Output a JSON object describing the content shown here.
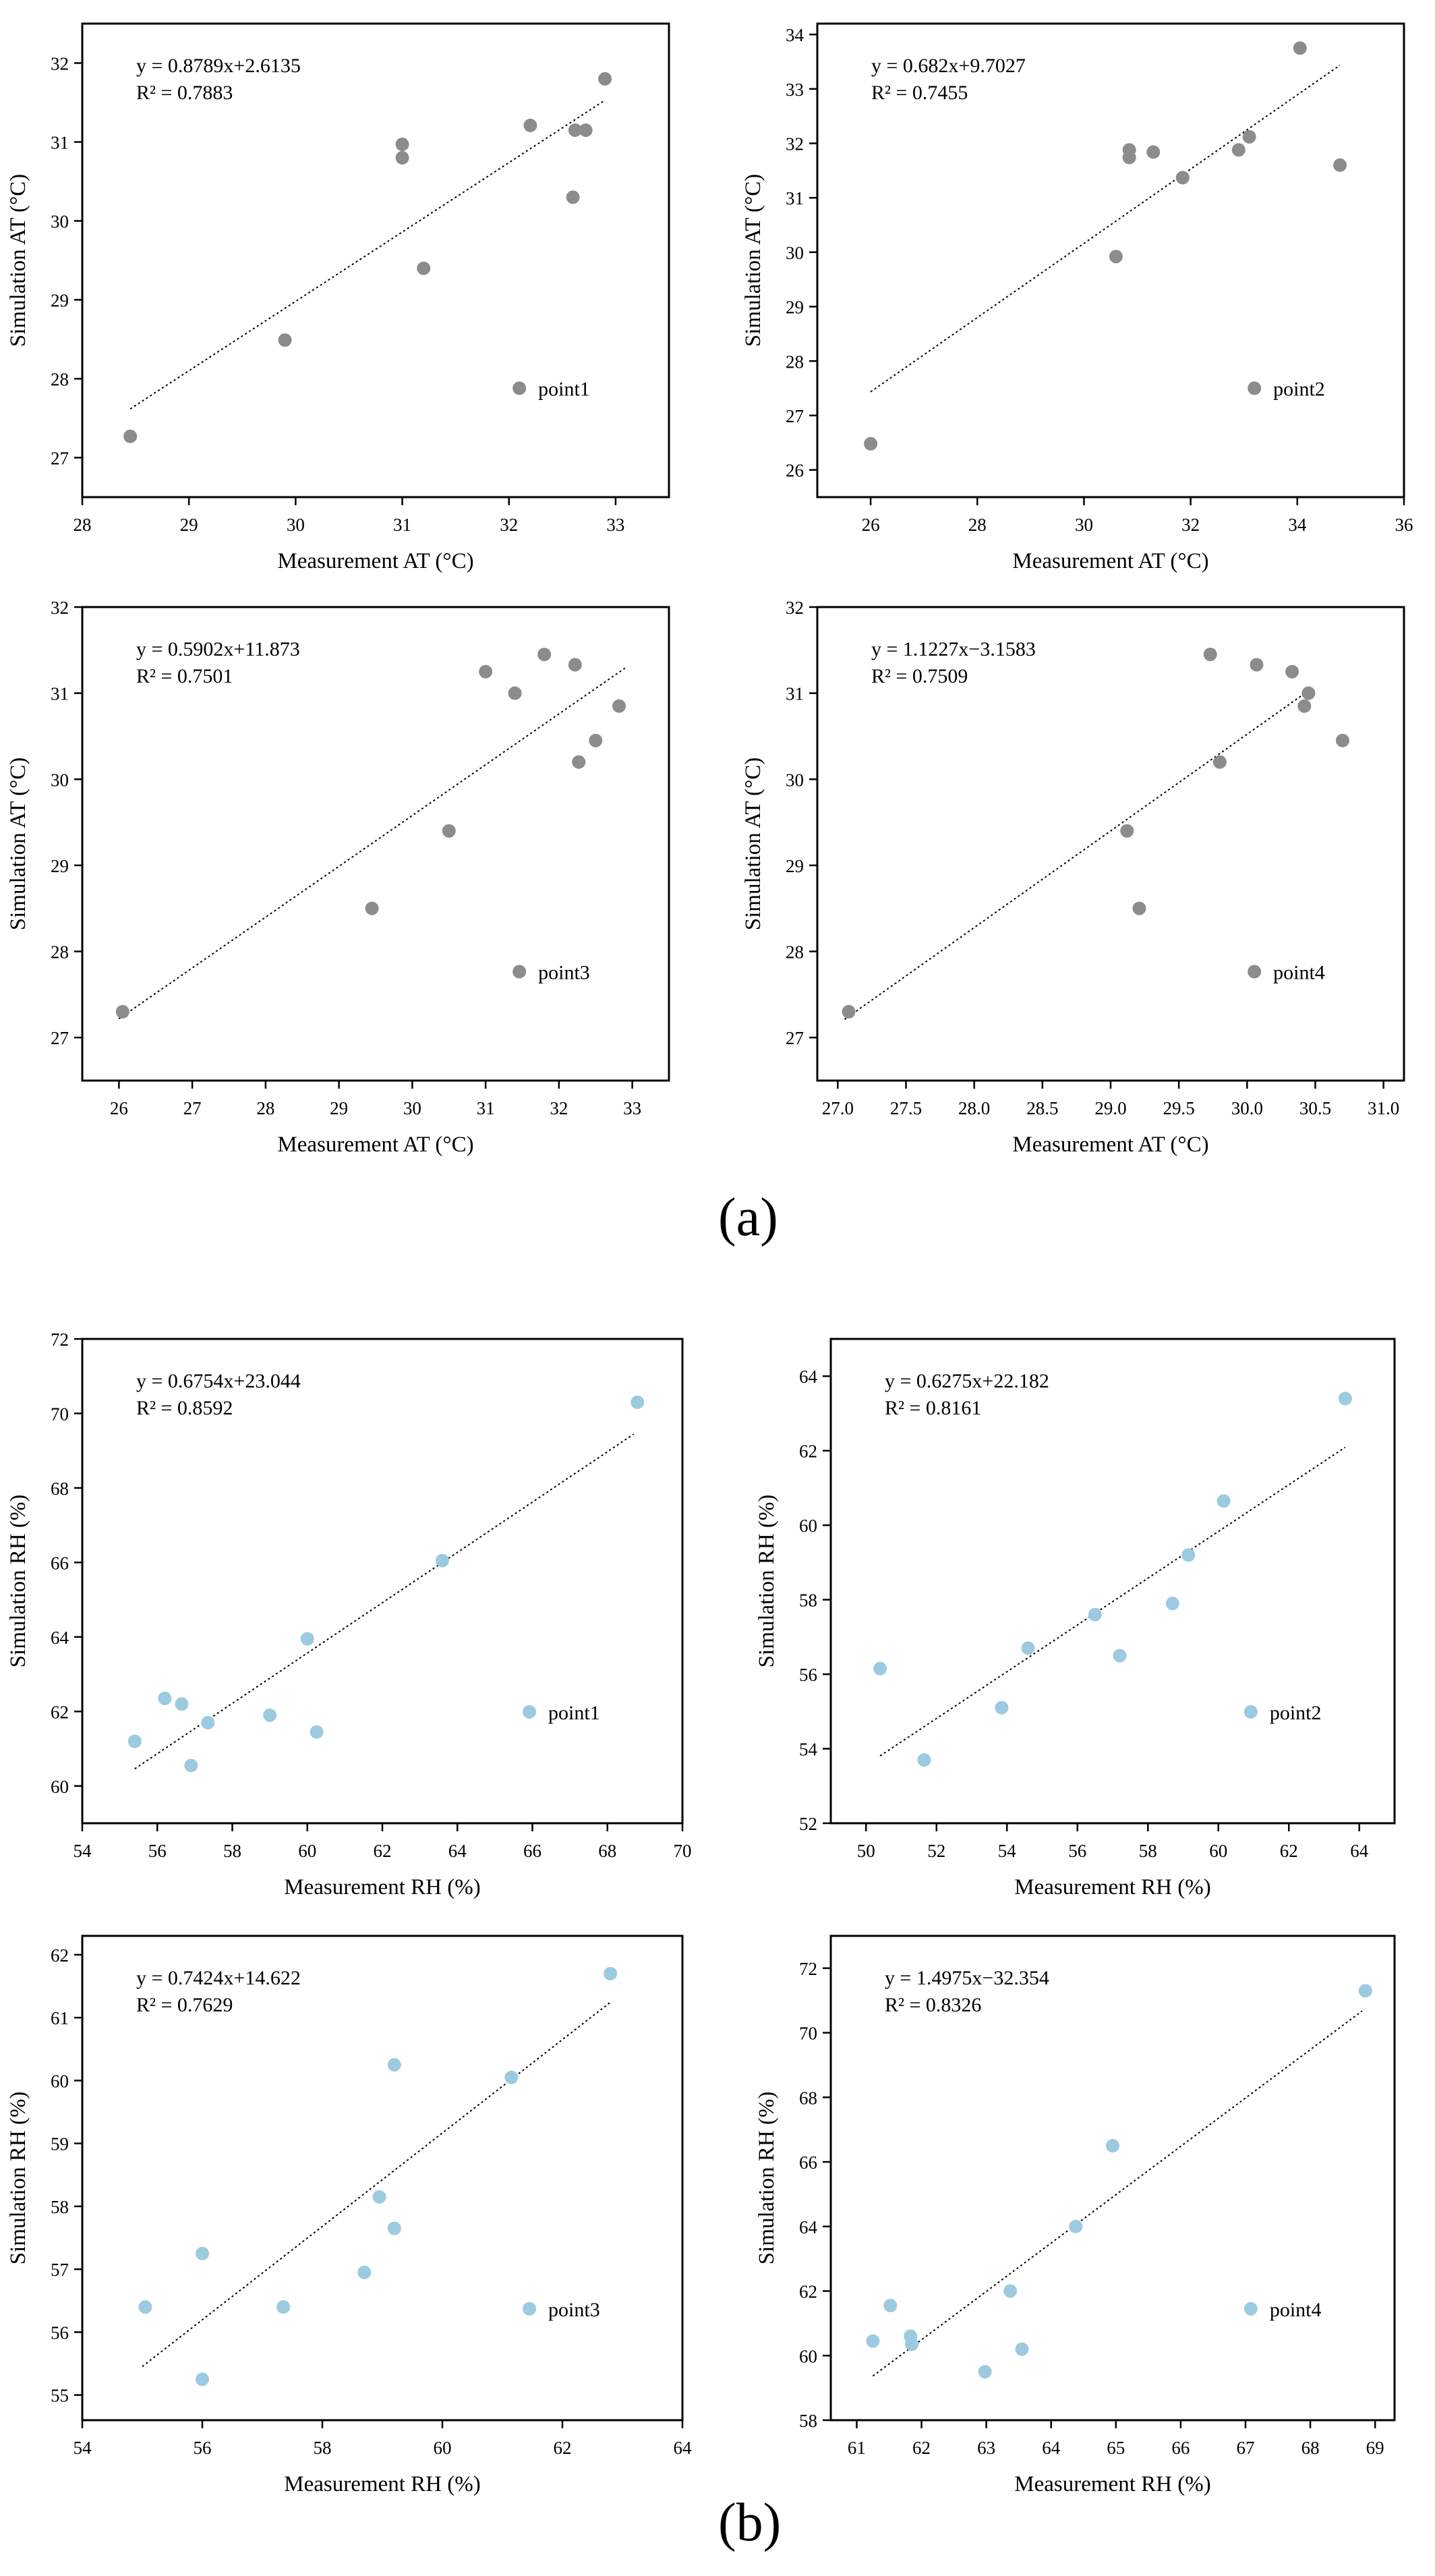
{
  "panel_labels": {
    "a": "(a)",
    "b": "(b)"
  },
  "colors": {
    "at_points": "#8c8c8c",
    "rh_points": "#9ccae0",
    "axis": "#000000",
    "fit_line": "#000000"
  },
  "chart_data": [
    {
      "id": "a1",
      "type": "scatter",
      "group": "a",
      "xlabel": "Measurement AT (°C)",
      "ylabel": "Simulation AT (°C)",
      "xlim": [
        28,
        33.5
      ],
      "ylim": [
        26.5,
        32.5
      ],
      "xticks": [
        28,
        29,
        30,
        31,
        32,
        33
      ],
      "yticks": [
        27,
        28,
        29,
        30,
        31,
        32
      ],
      "equation": "y = 0.8789x+2.6135",
      "r2": "R² = 0.7883",
      "fit": {
        "slope": 0.8789,
        "intercept": 2.6135,
        "x_range": [
          28.45,
          32.9
        ]
      },
      "legend": "point1",
      "legend_position": "lower-right",
      "points": [
        [
          28.45,
          27.27
        ],
        [
          29.9,
          28.49
        ],
        [
          31.0,
          30.97
        ],
        [
          31.0,
          30.8
        ],
        [
          31.2,
          29.4
        ],
        [
          32.2,
          31.21
        ],
        [
          32.6,
          30.3
        ],
        [
          32.62,
          31.15
        ],
        [
          32.72,
          31.15
        ],
        [
          32.9,
          31.8
        ]
      ]
    },
    {
      "id": "a2",
      "type": "scatter",
      "group": "a",
      "xlabel": "Measurement AT (°C)",
      "ylabel": "Simulation AT (°C)",
      "xlim": [
        25,
        36
      ],
      "ylim": [
        25.5,
        34.2
      ],
      "xticks": [
        26,
        28,
        30,
        32,
        34,
        36
      ],
      "yticks": [
        26,
        27,
        28,
        29,
        30,
        31,
        32,
        33,
        34
      ],
      "equation": "y = 0.682x+9.7027",
      "r2": "R² = 0.7455",
      "fit": {
        "slope": 0.682,
        "intercept": 9.7027,
        "x_range": [
          26.0,
          34.8
        ]
      },
      "legend": "point2",
      "legend_position": "lower-right",
      "points": [
        [
          26.0,
          26.48
        ],
        [
          30.6,
          29.92
        ],
        [
          30.85,
          31.88
        ],
        [
          30.85,
          31.74
        ],
        [
          31.3,
          31.84
        ],
        [
          31.85,
          31.37
        ],
        [
          32.9,
          31.88
        ],
        [
          33.1,
          32.12
        ],
        [
          34.05,
          33.75
        ],
        [
          34.8,
          31.6
        ]
      ]
    },
    {
      "id": "a3",
      "type": "scatter",
      "group": "a",
      "xlabel": "Measurement AT (°C)",
      "ylabel": "Simulation AT (°C)",
      "xlim": [
        25.5,
        33.5
      ],
      "ylim": [
        26.5,
        32
      ],
      "xticks": [
        26,
        27,
        28,
        29,
        30,
        31,
        32,
        33
      ],
      "yticks": [
        27,
        28,
        29,
        30,
        31,
        32
      ],
      "equation": "y = 0.5902x+11.873",
      "r2": "R² = 0.7501",
      "fit": {
        "slope": 0.5902,
        "intercept": 11.873,
        "x_range": [
          26.0,
          32.9
        ]
      },
      "legend": "point3",
      "legend_position": "lower-right",
      "points": [
        [
          26.05,
          27.3
        ],
        [
          29.45,
          28.5
        ],
        [
          30.5,
          29.4
        ],
        [
          31.0,
          31.25
        ],
        [
          31.4,
          31.0
        ],
        [
          31.8,
          31.45
        ],
        [
          32.22,
          31.33
        ],
        [
          32.27,
          30.2
        ],
        [
          32.5,
          30.45
        ],
        [
          32.82,
          30.85
        ]
      ]
    },
    {
      "id": "a4",
      "type": "scatter",
      "group": "a",
      "xlabel": "Measurement AT (°C)",
      "ylabel": "Simulation AT (°C)",
      "xlim": [
        26.85,
        31.15
      ],
      "ylim": [
        26.5,
        32
      ],
      "xticks": [
        27.0,
        27.5,
        28.0,
        28.5,
        29.0,
        29.5,
        30.0,
        30.5,
        31.0
      ],
      "yticks": [
        27,
        28,
        29,
        30,
        31,
        32
      ],
      "equation": "y = 1.1227x−3.1583",
      "r2": "R² = 0.7509",
      "fit": {
        "slope": 1.1227,
        "intercept": -3.1583,
        "x_range": [
          27.05,
          30.45
        ]
      },
      "legend": "point4",
      "legend_position": "lower-right",
      "points": [
        [
          27.08,
          27.3
        ],
        [
          29.12,
          29.4
        ],
        [
          29.21,
          28.5
        ],
        [
          29.73,
          31.45
        ],
        [
          29.8,
          30.2
        ],
        [
          30.07,
          31.33
        ],
        [
          30.33,
          31.25
        ],
        [
          30.42,
          30.85
        ],
        [
          30.45,
          31.0
        ],
        [
          30.7,
          30.45
        ]
      ]
    },
    {
      "id": "b1",
      "type": "scatter",
      "group": "b",
      "xlabel": "Measurement RH (%)",
      "ylabel": "Simulation RH (%)",
      "xlim": [
        54,
        70
      ],
      "ylim": [
        59,
        72
      ],
      "xticks": [
        54,
        56,
        58,
        60,
        62,
        64,
        66,
        68,
        70
      ],
      "yticks": [
        60,
        62,
        64,
        66,
        68,
        70,
        72
      ],
      "equation": "y = 0.6754x+23.044",
      "r2": "R² = 0.8592",
      "fit": {
        "slope": 0.6754,
        "intercept": 23.044,
        "x_range": [
          55.4,
          68.7
        ]
      },
      "legend": "point1",
      "legend_position": "lower-right",
      "points": [
        [
          55.4,
          61.2
        ],
        [
          56.2,
          62.35
        ],
        [
          56.65,
          62.2
        ],
        [
          56.9,
          60.55
        ],
        [
          57.35,
          61.7
        ],
        [
          59.0,
          61.9
        ],
        [
          60.0,
          63.95
        ],
        [
          60.25,
          61.45
        ],
        [
          63.6,
          66.05
        ],
        [
          68.8,
          70.3
        ]
      ]
    },
    {
      "id": "b2",
      "type": "scatter",
      "group": "b",
      "xlabel": "Measurement RH (%)",
      "ylabel": "Simulation RH (%)",
      "xlim": [
        49,
        65
      ],
      "ylim": [
        52,
        65
      ],
      "xticks": [
        50,
        52,
        54,
        56,
        58,
        60,
        62,
        64
      ],
      "yticks": [
        52,
        54,
        56,
        58,
        60,
        62,
        64
      ],
      "equation": "y = 0.6275x+22.182",
      "r2": "R² = 0.8161",
      "fit": {
        "slope": 0.6275,
        "intercept": 22.182,
        "x_range": [
          50.4,
          63.6
        ]
      },
      "legend": "point2",
      "legend_position": "lower-right",
      "points": [
        [
          50.4,
          56.15
        ],
        [
          51.65,
          53.7
        ],
        [
          53.85,
          55.1
        ],
        [
          54.6,
          56.7
        ],
        [
          56.5,
          57.6
        ],
        [
          57.2,
          56.5
        ],
        [
          58.7,
          57.9
        ],
        [
          59.15,
          59.2
        ],
        [
          60.15,
          60.65
        ],
        [
          63.6,
          63.4
        ]
      ]
    },
    {
      "id": "b3",
      "type": "scatter",
      "group": "b",
      "xlabel": "Measurement RH (%)",
      "ylabel": "Simulation RH (%)",
      "xlim": [
        54,
        64
      ],
      "ylim": [
        54.6,
        62.3
      ],
      "xticks": [
        54,
        56,
        58,
        60,
        62,
        64
      ],
      "yticks": [
        55,
        56,
        57,
        58,
        59,
        60,
        61,
        62
      ],
      "equation": "y = 0.7424x+14.622",
      "r2": "R² = 0.7629",
      "fit": {
        "slope": 0.7424,
        "intercept": 14.622,
        "x_range": [
          55.0,
          62.8
        ]
      },
      "legend": "point3",
      "legend_position": "lower-right",
      "points": [
        [
          55.05,
          56.4
        ],
        [
          56.0,
          57.25
        ],
        [
          56.0,
          55.25
        ],
        [
          57.35,
          56.4
        ],
        [
          58.7,
          56.95
        ],
        [
          58.95,
          58.15
        ],
        [
          59.2,
          57.65
        ],
        [
          59.2,
          60.25
        ],
        [
          61.15,
          60.05
        ],
        [
          62.8,
          61.7
        ]
      ]
    },
    {
      "id": "b4",
      "type": "scatter",
      "group": "b",
      "xlabel": "Measurement RH (%)",
      "ylabel": "Simulation RH (%)",
      "xlim": [
        60.6,
        69.3
      ],
      "ylim": [
        58,
        73
      ],
      "xticks": [
        61,
        62,
        63,
        64,
        65,
        66,
        67,
        68,
        69
      ],
      "yticks": [
        58,
        60,
        62,
        64,
        66,
        68,
        70,
        72
      ],
      "equation": "y = 1.4975x−32.354",
      "r2": "R² = 0.8326",
      "fit": {
        "slope": 1.4975,
        "intercept": -32.354,
        "x_range": [
          61.25,
          68.8
        ]
      },
      "legend": "point4",
      "legend_position": "lower-right",
      "points": [
        [
          61.25,
          60.45
        ],
        [
          61.52,
          61.55
        ],
        [
          61.83,
          60.6
        ],
        [
          61.85,
          60.35
        ],
        [
          62.98,
          59.5
        ],
        [
          63.37,
          62.0
        ],
        [
          63.55,
          60.2
        ],
        [
          64.38,
          64.0
        ],
        [
          64.95,
          66.5
        ],
        [
          68.85,
          71.3
        ]
      ]
    }
  ]
}
